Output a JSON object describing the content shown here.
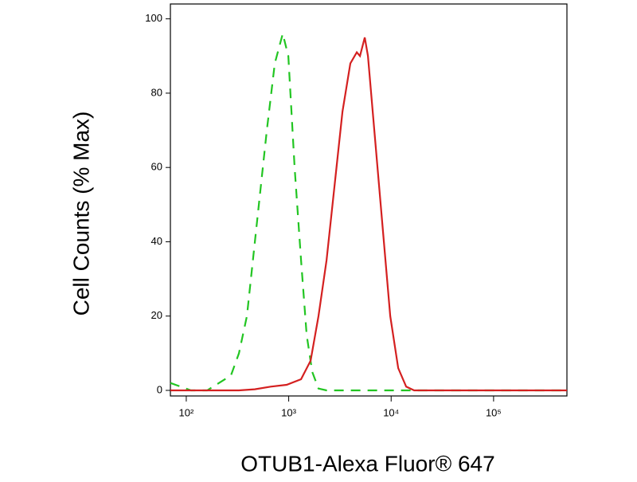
{
  "chart_data": {
    "type": "line",
    "x_label": "OTUB1-Alexa Fluor® 647",
    "y_label": "Cell Counts (% Max)",
    "xscale": "log",
    "xlim": [
      70,
      520000
    ],
    "ylim": [
      -1.5,
      104
    ],
    "xticks": [
      {
        "value": 100,
        "label": "10²"
      },
      {
        "value": 1000,
        "label": "10³"
      },
      {
        "value": 10000,
        "label": "10⁴"
      },
      {
        "value": 100000,
        "label": "10⁵"
      }
    ],
    "yticks": [
      0,
      20,
      40,
      60,
      80,
      100
    ],
    "series": [
      {
        "color": "#22c522",
        "style": "dashed",
        "x": [
          70,
          111,
          160,
          273,
          327,
          391,
          511,
          611,
          731,
          874,
          991,
          1143,
          1319,
          1496,
          1695,
          1955,
          2339,
          520000
        ],
        "values": [
          2,
          0,
          0,
          4,
          10,
          20,
          50,
          70,
          88,
          96,
          90,
          60,
          35,
          15,
          5,
          0.5,
          0,
          0
        ]
      },
      {
        "color": "#d42020",
        "style": "solid",
        "x": [
          70,
          327,
          467,
          668,
          955,
          1319,
          1636,
          1955,
          2339,
          2798,
          3347,
          4000,
          4620,
          4965,
          5523,
          5934,
          6850,
          8190,
          9800,
          11720,
          14020,
          16760,
          520000
        ],
        "values": [
          0,
          0,
          0.3,
          1,
          1.5,
          3,
          8,
          20,
          35,
          55,
          75,
          88,
          91,
          90,
          95,
          90,
          70,
          45,
          20,
          6,
          1,
          0,
          0
        ]
      }
    ]
  }
}
